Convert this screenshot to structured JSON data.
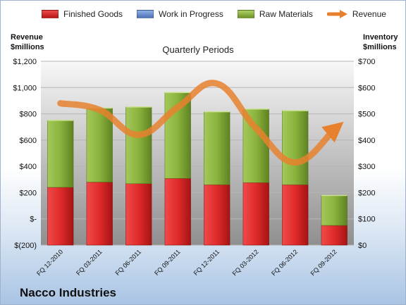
{
  "legend": {
    "finished": "Finished Goods",
    "wip": "Work in Progress",
    "raw": "Raw Materials",
    "revenue": "Revenue"
  },
  "left_axis_title": [
    "Revenue",
    "$millions"
  ],
  "right_axis_title": [
    "Inventory",
    "$millions"
  ],
  "plot_title": "Quarterly Periods",
  "company": "Nacco Industries",
  "colors": {
    "finished": "#d81f26",
    "wip": "#6a8fd0",
    "raw": "#8bb13c",
    "revenue": "#e8812e",
    "plot_bg_top": "#f4f4f4",
    "plot_bg_bottom": "#9b9b9b"
  },
  "chart_data": {
    "type": "bar",
    "categories": [
      "FQ 12-2010",
      "FQ 03-2011",
      "FQ 06-2011",
      "FQ 09-2011",
      "FQ 12-2011",
      "FQ 03-2012",
      "FQ 06-2012",
      "FQ 09-2012"
    ],
    "series": [
      {
        "name": "Finished Goods",
        "axis": "right",
        "stack": "inventory",
        "values": [
          220,
          240,
          234,
          254,
          230,
          238,
          230,
          75
        ]
      },
      {
        "name": "Work in Progress",
        "axis": "right",
        "stack": "inventory",
        "values": [
          0,
          0,
          0,
          0,
          0,
          0,
          0,
          0
        ]
      },
      {
        "name": "Raw Materials",
        "axis": "right",
        "stack": "inventory",
        "values": [
          255,
          282,
          292,
          327,
          278,
          280,
          282,
          114
        ]
      },
      {
        "name": "Revenue",
        "axis": "left",
        "type": "line",
        "values": [
          880,
          830,
          640,
          850,
          1030,
          690,
          430,
          680
        ]
      }
    ],
    "left_axis": {
      "title": "Revenue $millions",
      "min": -200,
      "max": 1200,
      "step": 200,
      "tick_labels": [
        "$(200)",
        "$-",
        "$200",
        "$400",
        "$600",
        "$800",
        "$1,000",
        "$1,200"
      ]
    },
    "right_axis": {
      "title": "Inventory $millions",
      "min": 0,
      "max": 700,
      "step": 100,
      "tick_labels": [
        "$0",
        "$100",
        "$200",
        "$300",
        "$400",
        "$500",
        "$600",
        "$700"
      ]
    },
    "grid": true,
    "legend_position": "top"
  }
}
